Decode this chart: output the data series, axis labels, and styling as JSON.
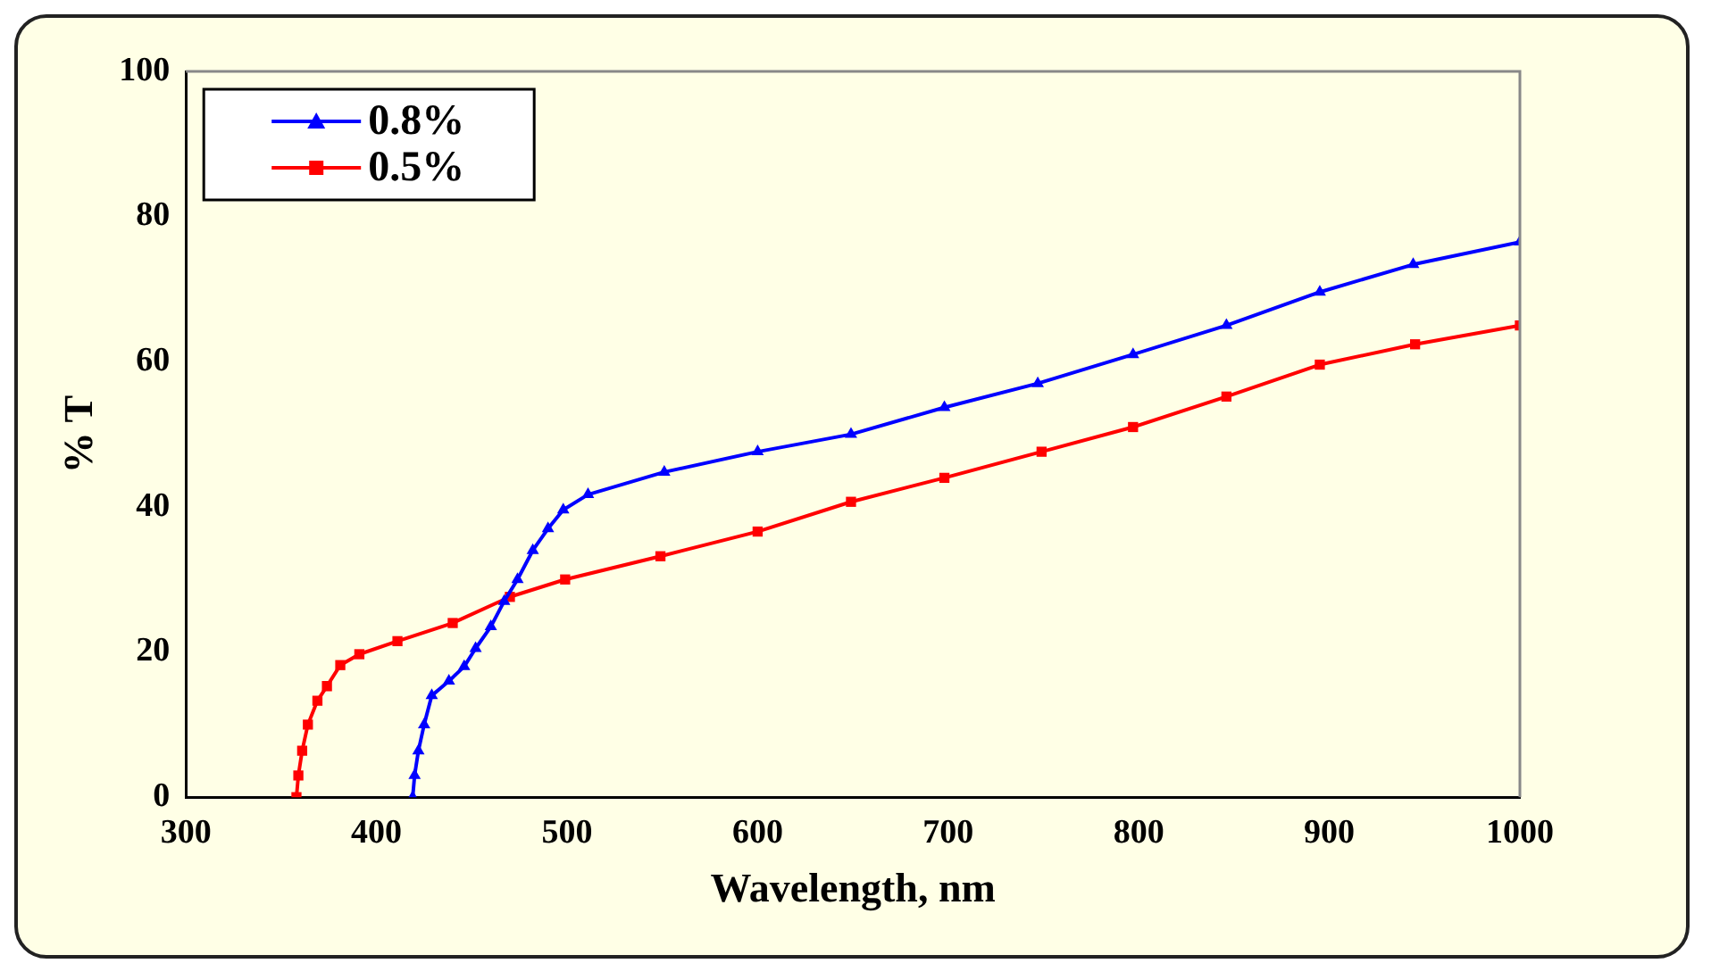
{
  "chart_data": {
    "type": "line",
    "xlabel": "Wavelength, nm",
    "ylabel": "% T",
    "xlim": [
      300,
      1000
    ],
    "xticks": [
      300,
      400,
      500,
      600,
      700,
      800,
      900,
      1000
    ],
    "ylim": [
      0,
      100
    ],
    "yticks": [
      0,
      20,
      40,
      60,
      80,
      100
    ],
    "grid": false,
    "legend": "top left",
    "line_style": "solid",
    "series": [
      {
        "name": "0.8%",
        "color": "#0000ff",
        "marker": "triangle",
        "x": [
          419,
          420,
          422,
          425,
          429,
          438,
          446,
          452,
          460,
          467,
          474,
          482,
          490,
          498,
          511,
          551,
          600,
          649,
          698,
          747,
          797,
          846,
          895,
          944,
          1000
        ],
        "values": [
          0,
          3,
          6.4,
          10,
          14,
          16,
          18,
          20.5,
          23.5,
          27,
          30,
          34,
          37,
          39.6,
          41.7,
          44.8,
          47.6,
          50,
          53.7,
          57,
          61,
          65,
          69.6,
          73.4,
          76.5
        ]
      },
      {
        "name": "0.5%",
        "color": "#ff0000",
        "marker": "square",
        "x": [
          358,
          359,
          361,
          364,
          369,
          374,
          381,
          391,
          411,
          440,
          470,
          499,
          549,
          600,
          649,
          698,
          749,
          797,
          846,
          895,
          945,
          1000
        ],
        "values": [
          0,
          3,
          6.4,
          10,
          13.3,
          15.3,
          18.2,
          19.7,
          21.5,
          24,
          27.6,
          30,
          33.2,
          36.6,
          40.7,
          44,
          47.6,
          51,
          55.2,
          59.6,
          62.4,
          65
        ]
      }
    ]
  }
}
